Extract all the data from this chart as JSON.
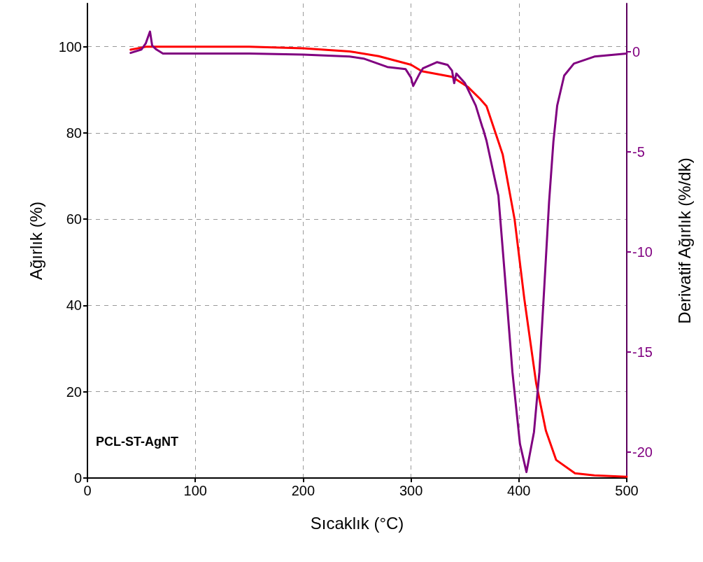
{
  "chart_data": {
    "type": "line",
    "xlabel": "Sıcaklık (°C)",
    "ylabel": "Ağırlık (%)",
    "y2label": "Derivatif Ağırlık (%/dk)",
    "xlim": [
      0,
      500
    ],
    "xticks": [
      0,
      100,
      200,
      300,
      400,
      500
    ],
    "ylim": [
      0,
      110
    ],
    "yticks": [
      0,
      20,
      40,
      60,
      80,
      100
    ],
    "y2lim": [
      -21.3,
      2.4
    ],
    "y2ticks": [
      -20,
      -15,
      -10,
      -5,
      0
    ],
    "grid": true,
    "marker": "none",
    "line_style": "solid",
    "annotations": [
      "PCL-ST-AgNT"
    ],
    "series": [
      {
        "color": "#ff0000",
        "x": [
          40,
          55,
          100,
          150,
          200,
          243,
          270,
          300,
          310,
          338,
          353,
          364,
          370,
          381,
          385,
          396,
          405,
          416,
          425,
          434.5,
          452,
          470,
          500
        ],
        "values": [
          99.3,
          100,
          100,
          100,
          99.6,
          98.9,
          97.8,
          95.8,
          94.3,
          93,
          90.6,
          87.9,
          86.2,
          78,
          75,
          60,
          41.6,
          22,
          11,
          4.2,
          1.1,
          0.6,
          0.3
        ]
      },
      {
        "color": "#800080",
        "axis": "y2",
        "x": [
          40,
          50,
          54,
          58,
          60,
          64,
          70,
          100,
          150,
          200,
          243,
          256,
          278,
          295,
          300,
          302,
          308,
          311,
          324,
          334,
          338,
          340,
          342,
          350,
          360,
          366,
          367,
          370,
          381,
          387,
          394,
          401,
          407,
          414,
          419,
          423.5,
          428,
          432,
          435.5,
          442,
          451,
          470,
          500
        ],
        "values": [
          -0.07,
          0.1,
          0.4,
          1.0,
          0.3,
          0.1,
          -0.1,
          -0.1,
          -0.1,
          -0.15,
          -0.25,
          -0.35,
          -0.77,
          -0.88,
          -1.3,
          -1.72,
          -1.1,
          -0.84,
          -0.53,
          -0.67,
          -0.95,
          -1.58,
          -1.1,
          -1.58,
          -2.7,
          -3.75,
          -3.9,
          -4.46,
          -7.2,
          -11.2,
          -16,
          -19.6,
          -21.0,
          -19,
          -16,
          -11.8,
          -7.5,
          -4.5,
          -2.7,
          -1.2,
          -0.6,
          -0.25,
          -0.1
        ]
      }
    ]
  }
}
